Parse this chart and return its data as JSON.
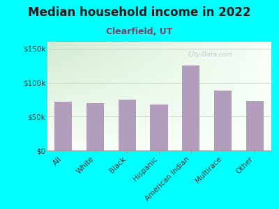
{
  "title": "Median household income in 2022",
  "subtitle": "Clearfield, UT",
  "categories": [
    "All",
    "White",
    "Black",
    "Hispanic",
    "American Indian",
    "Multirace",
    "Other"
  ],
  "values": [
    72000,
    70000,
    75000,
    68000,
    125000,
    88000,
    73000
  ],
  "bar_color": "#b39dbd",
  "background_outer": "#00FFFF",
  "background_inner_topleft": "#c8e6c9",
  "background_inner_right": "#f0fff0",
  "background_inner_bottom": "#f5fff5",
  "title_color": "#1a1a1a",
  "subtitle_color": "#8B3A62",
  "tick_color": "#4a3030",
  "ylim": [
    0,
    160000
  ],
  "yticks": [
    0,
    50000,
    100000,
    150000
  ],
  "ytick_labels": [
    "$0",
    "$50k",
    "$100k",
    "$150k"
  ],
  "watermark": "City-Data.com",
  "title_fontsize": 12,
  "subtitle_fontsize": 9,
  "tick_fontsize": 7.5,
  "bar_width": 0.55
}
